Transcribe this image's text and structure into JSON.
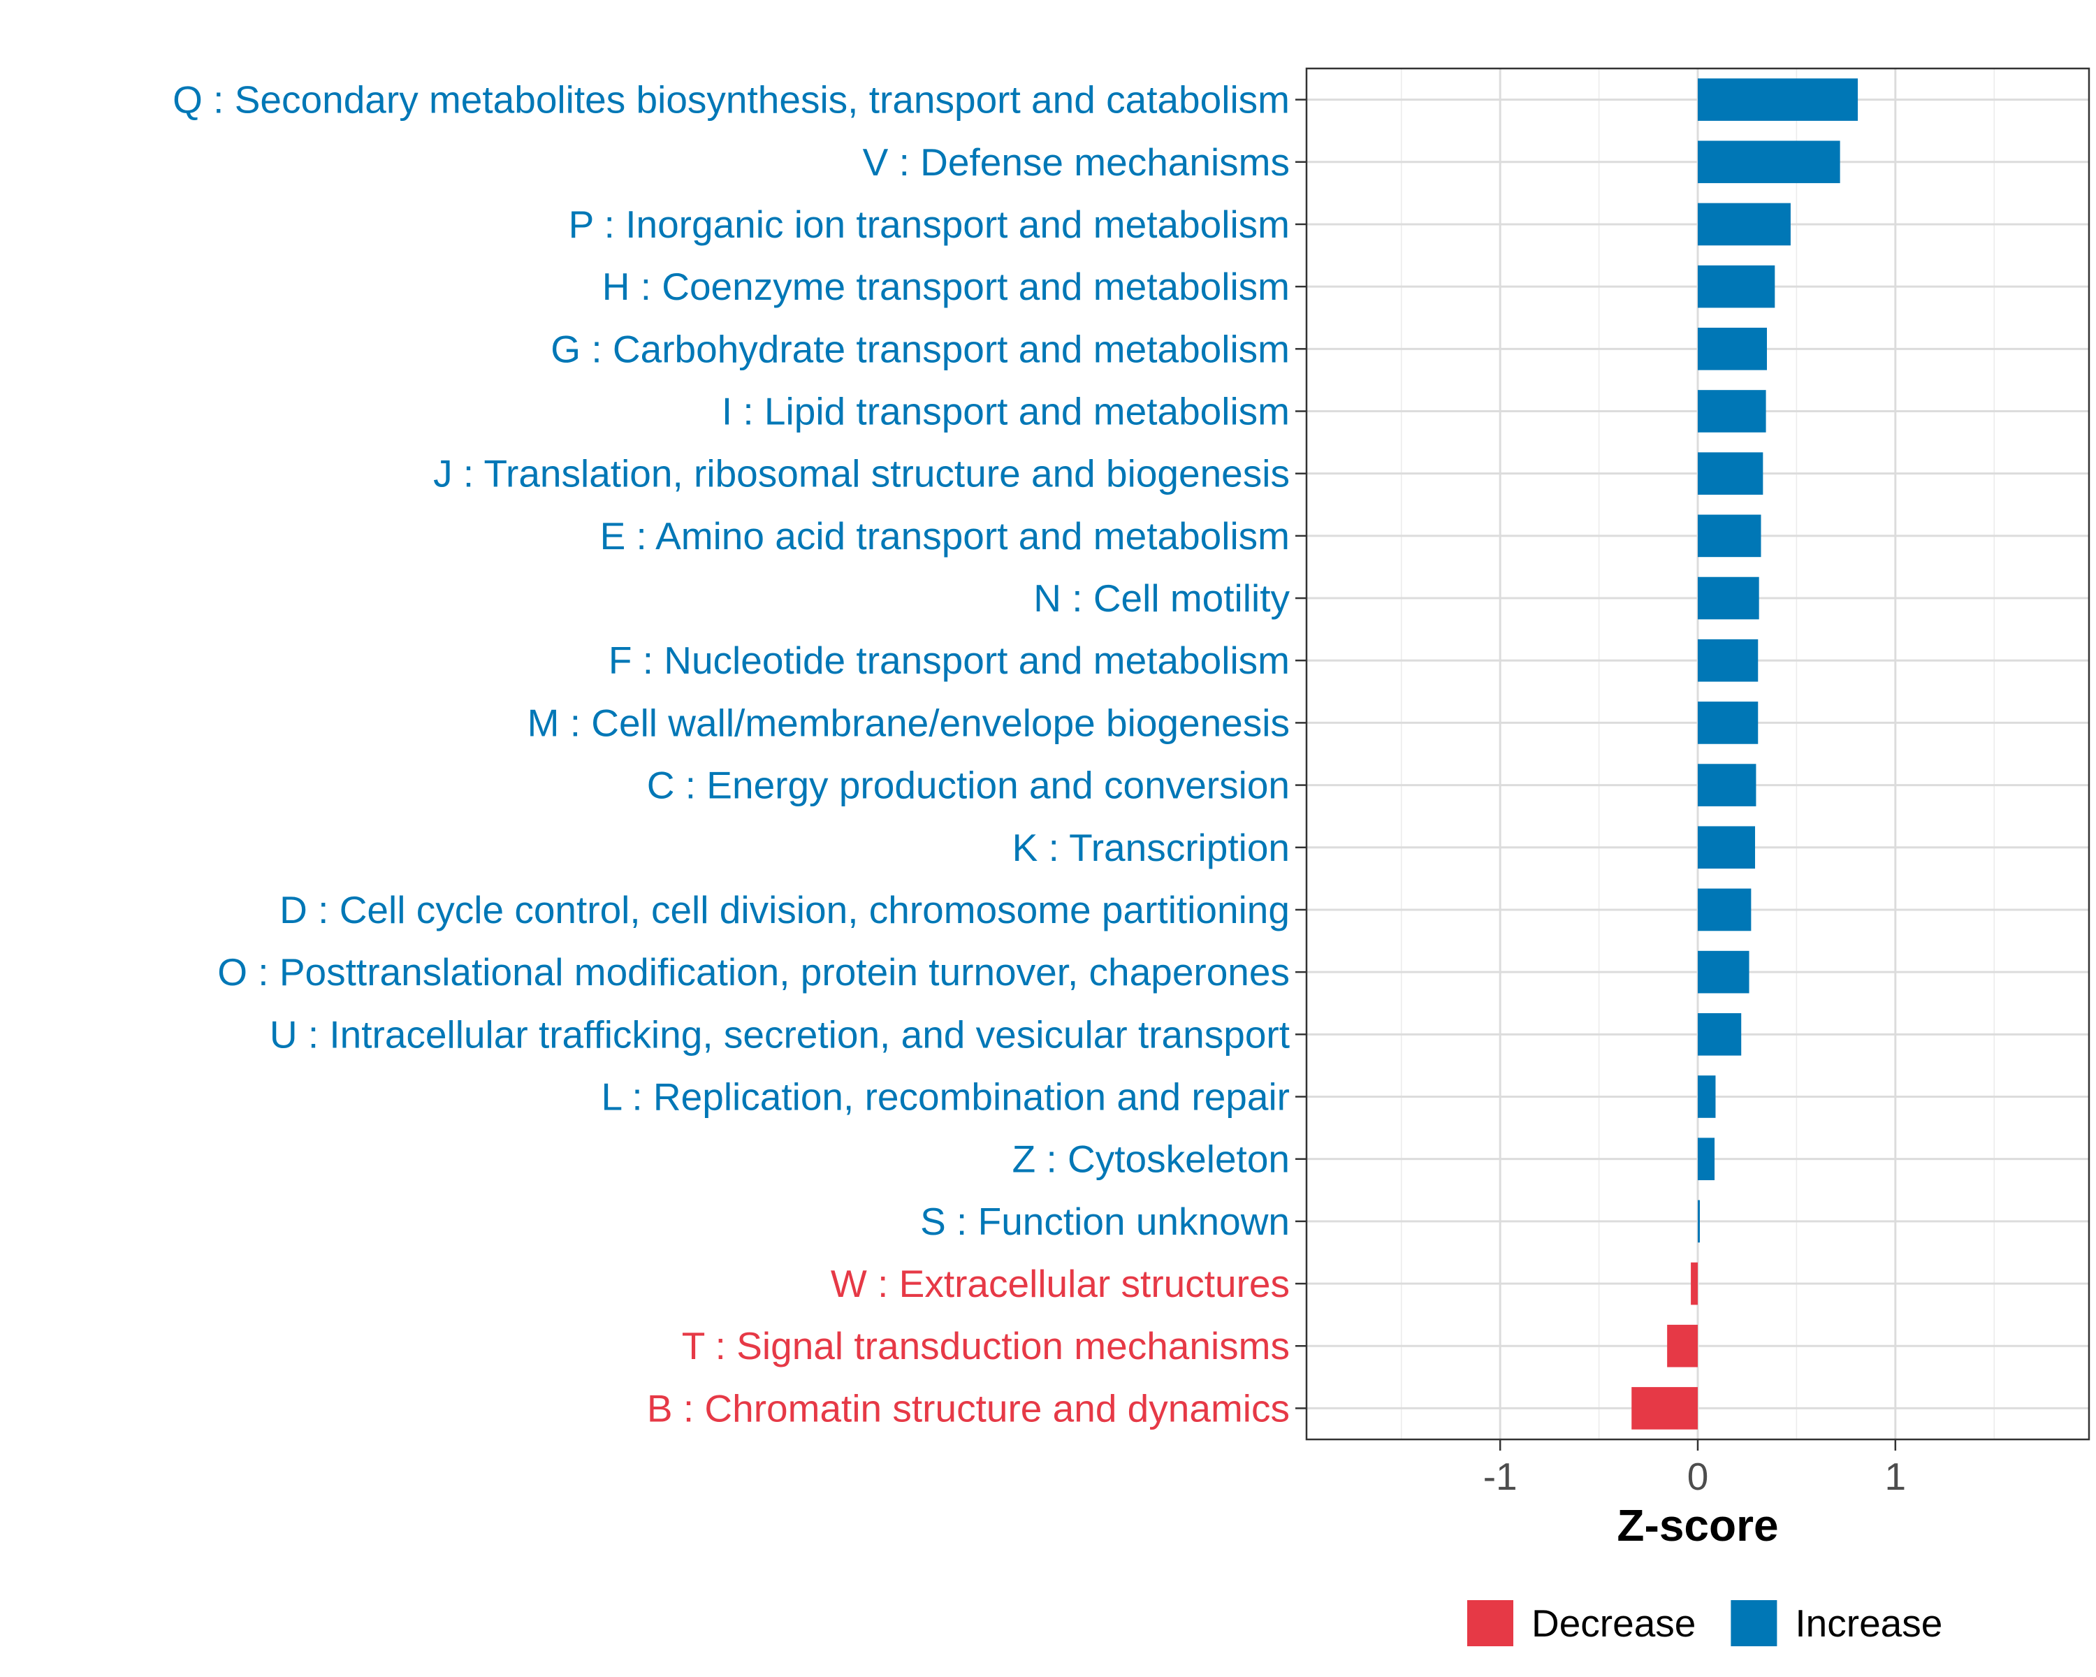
{
  "chart_data": {
    "type": "bar",
    "orientation": "horizontal",
    "title": "",
    "xlabel": "Z-score",
    "ylabel": "",
    "xlim": [
      -1.98,
      1.98
    ],
    "xticks": [
      -1,
      0,
      1
    ],
    "xtick_labels": [
      "-1",
      "0",
      "1"
    ],
    "grid": true,
    "legend_position": "bottom",
    "colors": {
      "Decrease": "#E63946",
      "Increase": "#0077B6"
    },
    "legend": [
      {
        "key": "Decrease",
        "label": "Decrease"
      },
      {
        "key": "Increase",
        "label": "Increase"
      }
    ],
    "categories": [
      "Q : Secondary metabolites biosynthesis, transport and catabolism",
      "V : Defense mechanisms",
      "P : Inorganic ion transport and metabolism",
      "H : Coenzyme transport and metabolism",
      "G : Carbohydrate transport and metabolism",
      "I : Lipid transport and metabolism",
      "J : Translation, ribosomal structure and biogenesis",
      "E : Amino acid transport and metabolism",
      "N : Cell motility",
      "F : Nucleotide transport and metabolism",
      "M : Cell wall/membrane/envelope biogenesis",
      "C : Energy production and conversion",
      "K : Transcription",
      "D : Cell cycle control, cell division, chromosome partitioning",
      "O : Posttranslational modification, protein turnover, chaperones",
      "U : Intracellular trafficking, secretion, and vesicular transport",
      "L : Replication, recombination and repair",
      "Z : Cytoskeleton",
      "S : Function unknown",
      "W : Extracellular structures",
      "T : Signal transduction mechanisms",
      "B : Chromatin structure and dynamics"
    ],
    "values": [
      0.81,
      0.72,
      0.47,
      0.39,
      0.35,
      0.345,
      0.33,
      0.32,
      0.31,
      0.305,
      0.305,
      0.295,
      0.29,
      0.27,
      0.26,
      0.22,
      0.09,
      0.085,
      0.01,
      -0.035,
      -0.155,
      -0.335
    ],
    "groups": [
      "Increase",
      "Increase",
      "Increase",
      "Increase",
      "Increase",
      "Increase",
      "Increase",
      "Increase",
      "Increase",
      "Increase",
      "Increase",
      "Increase",
      "Increase",
      "Increase",
      "Increase",
      "Increase",
      "Increase",
      "Increase",
      "Increase",
      "Decrease",
      "Decrease",
      "Decrease"
    ]
  }
}
